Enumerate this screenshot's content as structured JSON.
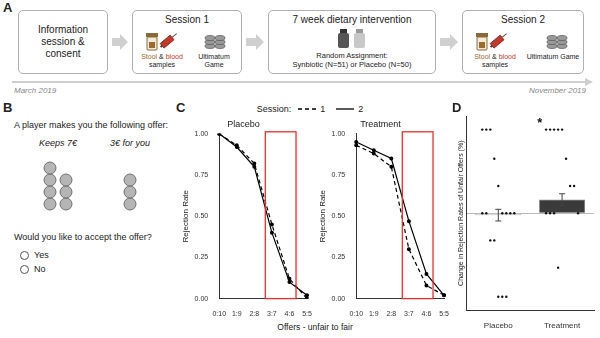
{
  "panel_a": {
    "label": "A",
    "steps": [
      {
        "title": "Information session & consent"
      },
      {
        "title": "Session 1",
        "samples": [
          "Stool",
          " & ",
          "blood",
          " samples"
        ],
        "items": [
          "Ultimatum Game"
        ]
      },
      {
        "title": "7 week dietary intervention",
        "note": [
          "Random Assignment:",
          "Synbiotic (N=51) or Placebo (N=50)"
        ]
      },
      {
        "title": "Session 2",
        "samples": [
          "Stool",
          " & ",
          "blood",
          " samples"
        ],
        "items": [
          "Ultimatum Game"
        ]
      }
    ],
    "timeline": {
      "start": "March 2019",
      "end": "November 2019"
    }
  },
  "panel_b": {
    "label": "B",
    "prompt": "A player makes you the following offer:",
    "keeps": {
      "label": "Keeps 7€",
      "coins": 7
    },
    "gives": {
      "label": "3€ for you",
      "coins": 3
    },
    "question": "Would you like to accept the offer?",
    "options": [
      "Yes",
      "No"
    ]
  },
  "panel_c": {
    "label": "C",
    "legend_title": "Session:",
    "x_label": "Offers - unfair to fair"
  },
  "chart_data": [
    {
      "type": "line",
      "title": "Placebo",
      "y_label": "Rejection Rate",
      "categories": [
        "0:10",
        "1:9",
        "2:8",
        "3:7",
        "4:6",
        "5:5"
      ],
      "series": [
        {
          "name": "1",
          "color": "#000000",
          "line_style": "dashed",
          "marker": "circle",
          "values": [
            1.0,
            0.93,
            0.82,
            0.45,
            0.12,
            0.0
          ]
        },
        {
          "name": "2",
          "color": "#000000",
          "line_style": "solid",
          "marker": "circle",
          "values": [
            1.0,
            0.92,
            0.8,
            0.4,
            0.1,
            0.02
          ]
        }
      ],
      "ylim": [
        0,
        1
      ],
      "yticks": [
        {
          "value": 0,
          "label": "0.00"
        },
        {
          "value": 0.25,
          "label": "0.25"
        },
        {
          "value": 0.5,
          "label": "0.50"
        },
        {
          "value": 0.75,
          "label": "0.75"
        },
        {
          "value": 1,
          "label": "1.00"
        }
      ],
      "grid": false,
      "highlight": {
        "from": "3:7",
        "to": "4:6",
        "color": "#e8302a"
      }
    },
    {
      "type": "line",
      "title": "Treatment",
      "y_label": "Rejection Rate",
      "categories": [
        "0:10",
        "1:9",
        "2:8",
        "3:7",
        "4:6",
        "5:5"
      ],
      "series": [
        {
          "name": "1",
          "color": "#000000",
          "line_style": "dashed",
          "marker": "circle",
          "values": [
            0.93,
            0.88,
            0.8,
            0.3,
            0.08,
            0.02
          ]
        },
        {
          "name": "2",
          "color": "#000000",
          "line_style": "solid",
          "marker": "circle",
          "values": [
            0.95,
            0.9,
            0.85,
            0.47,
            0.15,
            0.02
          ]
        }
      ],
      "ylim": [
        0,
        1
      ],
      "yticks": [
        {
          "value": 0,
          "label": "0.00"
        },
        {
          "value": 0.25,
          "label": "0.25"
        },
        {
          "value": 0.5,
          "label": "0.50"
        },
        {
          "value": 0.75,
          "label": "0.75"
        },
        {
          "value": 1,
          "label": "1.00"
        }
      ],
      "grid": false,
      "highlight": {
        "from": "3:7",
        "to": "4:6",
        "color": "#e8302a"
      }
    },
    {
      "type": "bar",
      "label": "D",
      "y_label": "Change in Rejection Rates of Unfair Offers (%)",
      "categories": [
        "Placebo",
        "Treatment"
      ],
      "values": [
        -1,
        7
      ],
      "errors": [
        3,
        3
      ],
      "colors": [
        "#eeeeee",
        "#3a3a3a"
      ],
      "points": [
        [
          43,
          43,
          43,
          28,
          14,
          0,
          0,
          0,
          0,
          0,
          0,
          -14,
          -14,
          -43,
          -43,
          -43
        ],
        [
          43,
          43,
          43,
          43,
          43,
          28,
          14,
          14,
          0,
          0,
          0,
          0,
          -28
        ]
      ],
      "ylim": [
        -50,
        50
      ],
      "yticks": [
        0
      ],
      "grid": true,
      "tick_labels": "x",
      "annotations": [
        "*"
      ]
    }
  ]
}
